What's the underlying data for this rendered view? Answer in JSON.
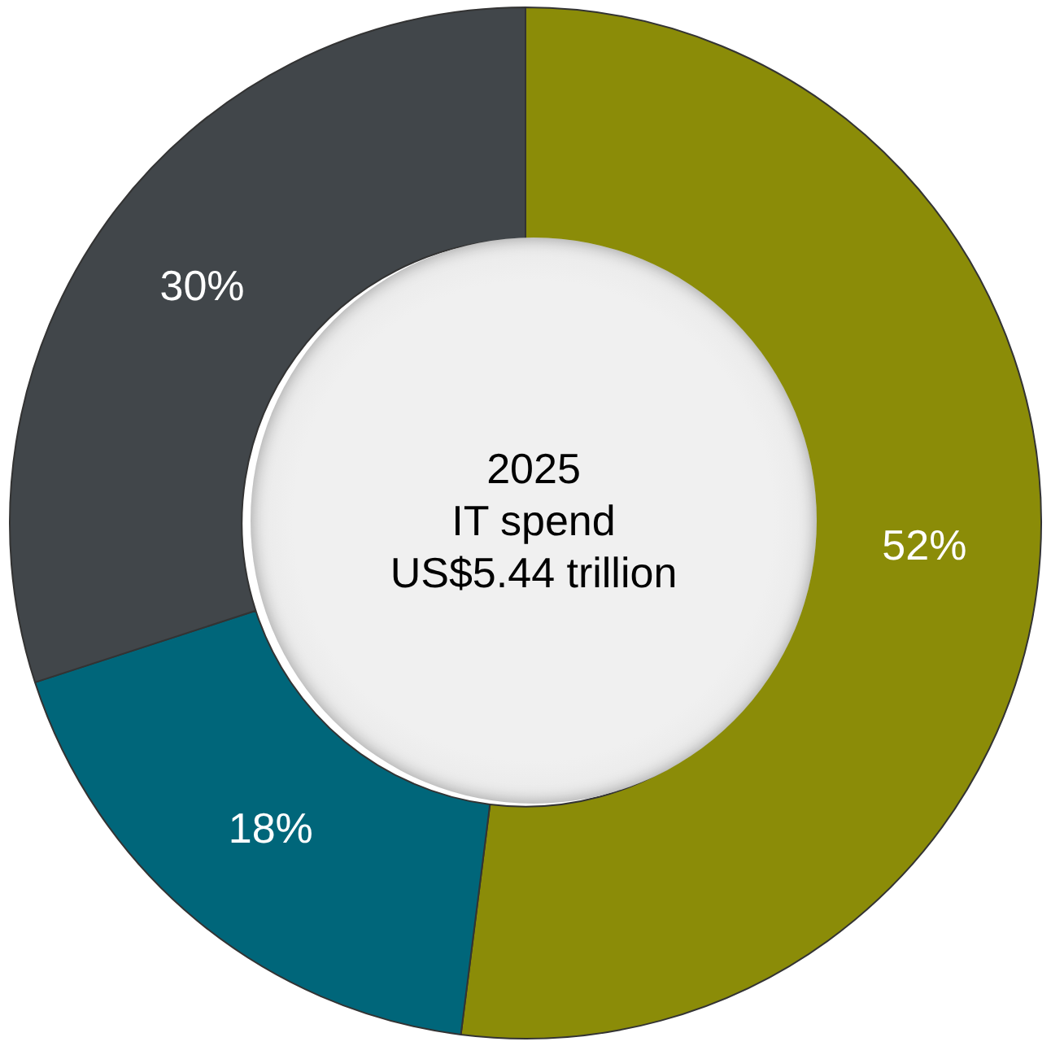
{
  "chart_data": {
    "type": "donut",
    "categories": [
      null,
      null,
      null
    ],
    "values": [
      52,
      18,
      30
    ],
    "colors": [
      "#8b8c08",
      "#00667a",
      "#41464a"
    ],
    "value_labels": [
      "52%",
      "18%",
      "30%"
    ],
    "annotations": [
      "2025",
      "IT spend",
      "US$5.44 trillion"
    ],
    "legend": false
  }
}
